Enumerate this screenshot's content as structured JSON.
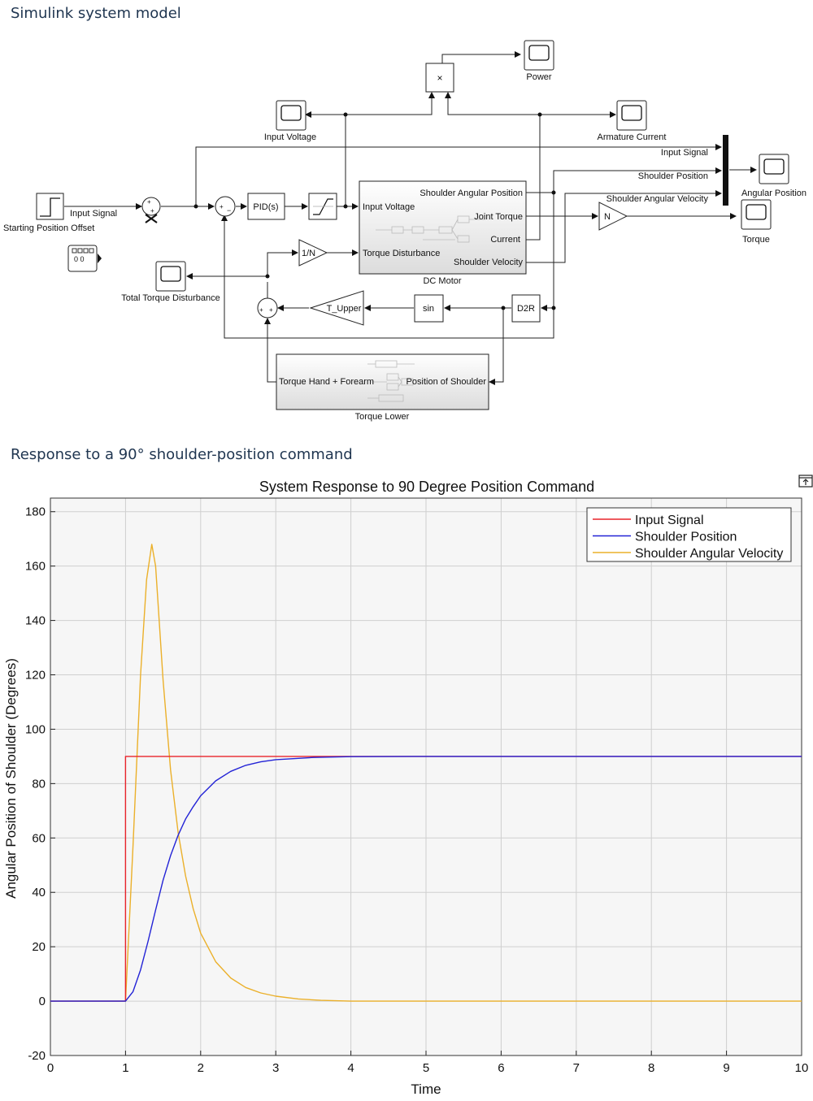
{
  "sections": {
    "model_title": "Simulink system model",
    "plot_title": "Response to a 90° shoulder-position command"
  },
  "diagram": {
    "blocks": {
      "step": "Input Signal",
      "starting_offset": "Starting Position Offset",
      "pid": "PID(s)",
      "inv_n": "1/N",
      "gain_n": "N",
      "t_upper": "T_Upper",
      "sin": "sin",
      "d2r": "D2R",
      "product": "×",
      "display": "0 0"
    },
    "scopes": {
      "power": "Power",
      "input_voltage": "Input Voltage",
      "armature_current": "Armature Current",
      "angular_position": "Angular Position",
      "torque": "Torque",
      "total_torque_disturbance": "Total Torque Disturbance"
    },
    "mux_inputs": [
      "Input Signal",
      "Shoulder Position",
      "Shoulder Angular Velocity"
    ],
    "dc_motor": {
      "name": "DC Motor",
      "in_voltage": "Input Voltage",
      "in_disturbance": "Torque Disturbance",
      "out_angular_position": "Shoulder Angular Position",
      "out_joint_torque": "Joint Torque",
      "out_current": "Current",
      "out_velocity": "Shoulder Velocity"
    },
    "torque_lower": {
      "name": "Torque Lower",
      "in_position": "Position of Shoulder",
      "out_torque": "Torque Hand + Forearm"
    },
    "signs": {
      "sum1": "+ +",
      "sum2": "+ −",
      "sum3": "+ +"
    }
  },
  "chart_data": {
    "type": "line",
    "title": "System Response to 90 Degree Position Command",
    "xlabel": "Time",
    "ylabel": "Angular Position of Shoulder (Degrees)",
    "xlim": [
      0,
      10
    ],
    "ylim": [
      -20,
      185
    ],
    "xticks": [
      0,
      1,
      2,
      3,
      4,
      5,
      6,
      7,
      8,
      9,
      10
    ],
    "yticks": [
      -20,
      0,
      20,
      40,
      60,
      80,
      100,
      120,
      140,
      160,
      180
    ],
    "grid": true,
    "legend_position": "top-right",
    "series": [
      {
        "name": "Input Signal",
        "color": "#e8232a",
        "x": [
          0,
          1,
          1,
          10
        ],
        "y": [
          0,
          0,
          90,
          90
        ]
      },
      {
        "name": "Shoulder Position",
        "color": "#2323d6",
        "x": [
          0,
          1,
          1.1,
          1.2,
          1.3,
          1.4,
          1.5,
          1.6,
          1.7,
          1.8,
          1.9,
          2.0,
          2.2,
          2.4,
          2.6,
          2.8,
          3.0,
          3.5,
          4.0,
          5.0,
          10
        ],
        "y": [
          0,
          0,
          3.5,
          11.5,
          22,
          33.5,
          44.5,
          53.5,
          61,
          67,
          71.5,
          75.5,
          81,
          84.5,
          86.7,
          88,
          88.8,
          89.6,
          89.9,
          90,
          90
        ]
      },
      {
        "name": "Shoulder Angular Velocity",
        "color": "#ebb02a",
        "x": [
          0,
          1,
          1.1,
          1.2,
          1.28,
          1.35,
          1.4,
          1.5,
          1.6,
          1.7,
          1.8,
          1.9,
          2.0,
          2.2,
          2.4,
          2.6,
          2.8,
          3.0,
          3.3,
          3.6,
          4.0,
          10
        ],
        "y": [
          0,
          0,
          57,
          120,
          155,
          168,
          160,
          118,
          85,
          62,
          46,
          34,
          25,
          14.5,
          8.5,
          5,
          3,
          1.8,
          0.8,
          0.3,
          0,
          0
        ]
      }
    ]
  }
}
